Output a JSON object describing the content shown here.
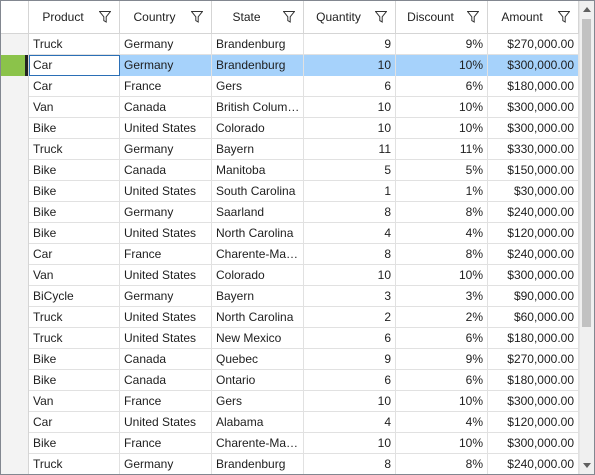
{
  "columns": [
    {
      "key": "product",
      "label": "Product"
    },
    {
      "key": "country",
      "label": "Country"
    },
    {
      "key": "state",
      "label": "State"
    },
    {
      "key": "quantity",
      "label": "Quantity"
    },
    {
      "key": "discount",
      "label": "Discount"
    },
    {
      "key": "amount",
      "label": "Amount"
    }
  ],
  "icons": {
    "filter": "filter-funnel-icon",
    "scroll_up": "scroll-up-arrow-icon",
    "scroll_down": "scroll-down-arrow-icon"
  },
  "colors": {
    "selection": "#a6d2fb",
    "row_indicator": "#8bc34a",
    "border": "#828790"
  },
  "selected_row": 1,
  "rows": [
    {
      "product": "Truck",
      "country": "Germany",
      "state": "Brandenburg",
      "quantity": "9",
      "discount": "9%",
      "amount": "$270,000.00"
    },
    {
      "product": "Car",
      "country": "Germany",
      "state": "Brandenburg",
      "quantity": "10",
      "discount": "10%",
      "amount": "$300,000.00"
    },
    {
      "product": "Car",
      "country": "France",
      "state": "Gers",
      "quantity": "6",
      "discount": "6%",
      "amount": "$180,000.00"
    },
    {
      "product": "Van",
      "country": "Canada",
      "state": "British Colum…",
      "quantity": "10",
      "discount": "10%",
      "amount": "$300,000.00"
    },
    {
      "product": "Bike",
      "country": "United States",
      "state": "Colorado",
      "quantity": "10",
      "discount": "10%",
      "amount": "$300,000.00"
    },
    {
      "product": "Truck",
      "country": "Germany",
      "state": "Bayern",
      "quantity": "11",
      "discount": "11%",
      "amount": "$330,000.00"
    },
    {
      "product": "Bike",
      "country": "Canada",
      "state": "Manitoba",
      "quantity": "5",
      "discount": "5%",
      "amount": "$150,000.00"
    },
    {
      "product": "Bike",
      "country": "United States",
      "state": "South Carolina",
      "quantity": "1",
      "discount": "1%",
      "amount": "$30,000.00"
    },
    {
      "product": "Bike",
      "country": "Germany",
      "state": "Saarland",
      "quantity": "8",
      "discount": "8%",
      "amount": "$240,000.00"
    },
    {
      "product": "Bike",
      "country": "United States",
      "state": "North Carolina",
      "quantity": "4",
      "discount": "4%",
      "amount": "$120,000.00"
    },
    {
      "product": "Car",
      "country": "France",
      "state": "Charente-Ma…",
      "quantity": "8",
      "discount": "8%",
      "amount": "$240,000.00"
    },
    {
      "product": "Van",
      "country": "United States",
      "state": "Colorado",
      "quantity": "10",
      "discount": "10%",
      "amount": "$300,000.00"
    },
    {
      "product": "BiCycle",
      "country": "Germany",
      "state": "Bayern",
      "quantity": "3",
      "discount": "3%",
      "amount": "$90,000.00"
    },
    {
      "product": "Truck",
      "country": "United States",
      "state": "North Carolina",
      "quantity": "2",
      "discount": "2%",
      "amount": "$60,000.00"
    },
    {
      "product": "Truck",
      "country": "United States",
      "state": "New Mexico",
      "quantity": "6",
      "discount": "6%",
      "amount": "$180,000.00"
    },
    {
      "product": "Bike",
      "country": "Canada",
      "state": "Quebec",
      "quantity": "9",
      "discount": "9%",
      "amount": "$270,000.00"
    },
    {
      "product": "Bike",
      "country": "Canada",
      "state": "Ontario",
      "quantity": "6",
      "discount": "6%",
      "amount": "$180,000.00"
    },
    {
      "product": "Van",
      "country": "France",
      "state": "Gers",
      "quantity": "10",
      "discount": "10%",
      "amount": "$300,000.00"
    },
    {
      "product": "Car",
      "country": "United States",
      "state": "Alabama",
      "quantity": "4",
      "discount": "4%",
      "amount": "$120,000.00"
    },
    {
      "product": "Bike",
      "country": "France",
      "state": "Charente-Ma…",
      "quantity": "10",
      "discount": "10%",
      "amount": "$300,000.00"
    },
    {
      "product": "Truck",
      "country": "Germany",
      "state": "Brandenburg",
      "quantity": "8",
      "discount": "8%",
      "amount": "$240,000.00"
    }
  ]
}
